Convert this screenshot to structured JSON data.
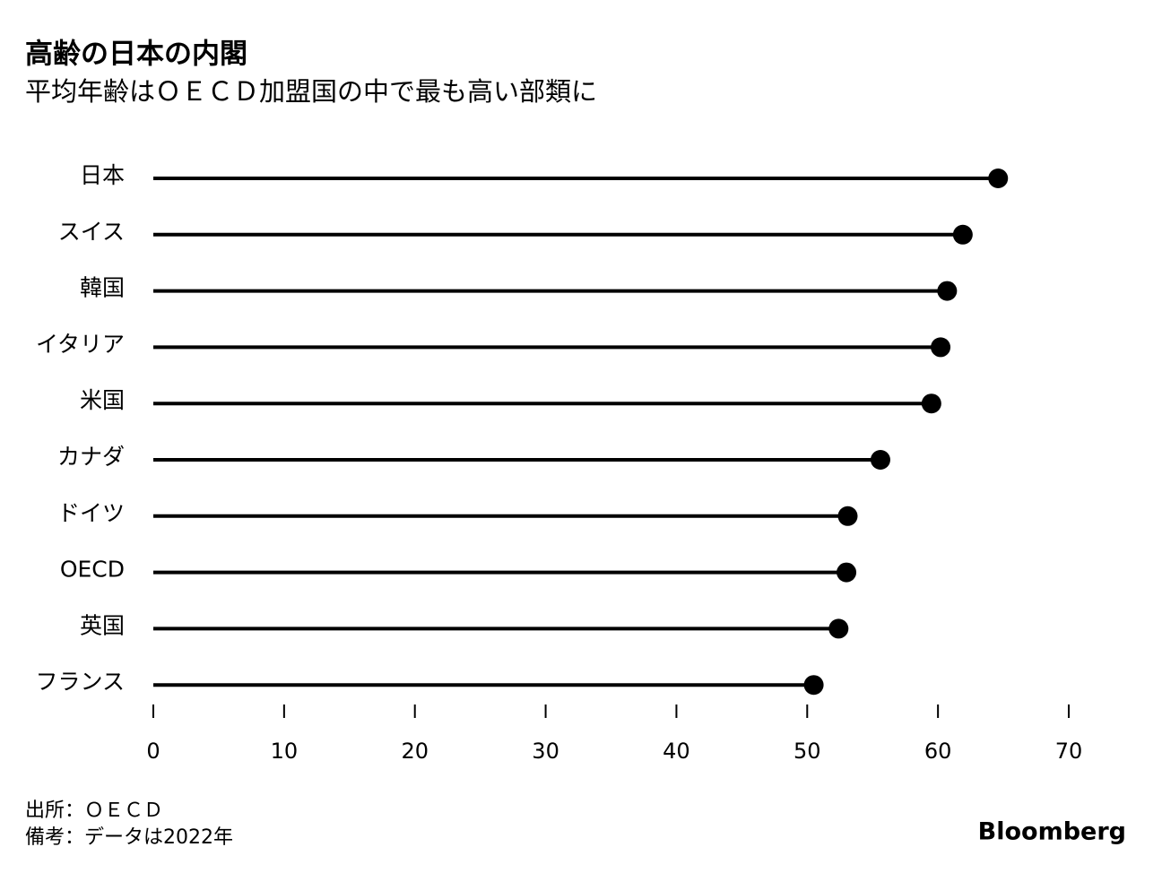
{
  "chart_data": {
    "type": "lollipop",
    "title": "高齢の日本の内閣",
    "subtitle": "平均年齢はＯＥＣＤ加盟国の中で最も高い部類に",
    "categories": [
      "日本",
      "スイス",
      "韓国",
      "イタリア",
      "米国",
      "カナダ",
      "ドイツ",
      "OECD",
      "英国",
      "フランス"
    ],
    "values": [
      64.6,
      61.9,
      60.7,
      60.2,
      59.5,
      55.6,
      53.1,
      53.0,
      52.4,
      50.5
    ],
    "color": "#000000",
    "xlim": [
      0,
      70
    ],
    "xticks": [
      0,
      10,
      20,
      30,
      40,
      50,
      60,
      70
    ],
    "grid": false,
    "source": "出所：ＯＥＣＤ",
    "note": "備考：データは2022年",
    "logo": "Bloomberg"
  }
}
